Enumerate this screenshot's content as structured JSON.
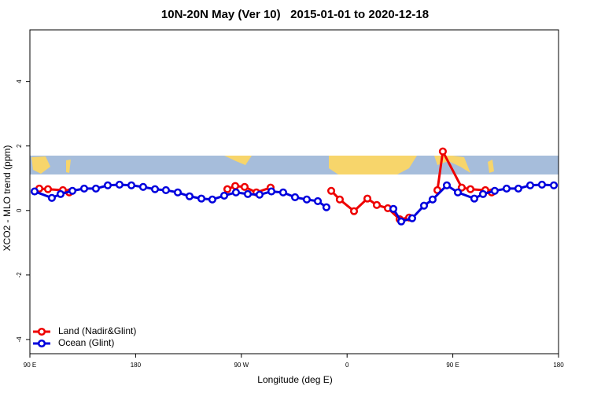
{
  "chart_data": {
    "type": "line",
    "title": "10N-20N May (Ver 10)   2015-01-01 to 2020-12-18",
    "x_label": "Longitude (deg E)",
    "y_label": "XCO2 - MLO trend (ppm)",
    "xlim": [
      90,
      540
    ],
    "xticks": [
      {
        "value": 90,
        "label": "90 E"
      },
      {
        "value": 180,
        "label": "180"
      },
      {
        "value": 270,
        "label": "90 W"
      },
      {
        "value": 360,
        "label": "0"
      },
      {
        "value": 450,
        "label": "90 E"
      },
      {
        "value": 540,
        "label": "180"
      }
    ],
    "ylim": [
      -4.44,
      5.6
    ],
    "yticks": [
      -4,
      -2,
      0,
      2,
      4
    ],
    "legend": "bottomleft",
    "series": [
      {
        "name": "Land (Nadir&Glint)",
        "color": "#ee0000",
        "x": [
          98.0,
          105.4,
          118.1,
          123.5,
          200,
          258.1,
          264.8,
          272.8,
          282.8,
          294.9,
          320,
          346.5,
          353.8,
          365.9,
          377.3,
          385.3,
          394.7,
          404.7,
          412.8,
          420,
          436.9,
          441.5,
          457.6,
          465.0,
          477.7,
          483.1
        ],
        "values": [
          0.68,
          0.66,
          0.63,
          0.56,
          null,
          0.66,
          0.76,
          0.73,
          0.56,
          0.71,
          null,
          0.61,
          0.34,
          -0.02,
          0.37,
          0.17,
          0.07,
          -0.27,
          -0.22,
          null,
          0.63,
          1.83,
          0.71,
          0.66,
          0.63,
          0.56
        ]
      },
      {
        "name": "Ocean (Glint)",
        "color": "#0000dd",
        "x": [
          94.0,
          108.7,
          116.1,
          126.2,
          136.2,
          146.2,
          156.3,
          166.3,
          176.4,
          186.4,
          196.5,
          205.8,
          215.9,
          225.9,
          236.0,
          245.3,
          255.4,
          265.4,
          275.5,
          285.5,
          295.6,
          305.6,
          315.7,
          325.7,
          335.1,
          342.4,
          370,
          399.4,
          406.1,
          415.4,
          425.5,
          432.8,
          444.9,
          454.3,
          468.3,
          475.7,
          485.7,
          495.8,
          505.8,
          515.9,
          525.9,
          536.0
        ],
        "values": [
          0.59,
          0.39,
          0.51,
          0.61,
          0.68,
          0.68,
          0.78,
          0.8,
          0.78,
          0.73,
          0.66,
          0.63,
          0.56,
          0.44,
          0.37,
          0.34,
          0.46,
          0.56,
          0.51,
          0.49,
          0.59,
          0.56,
          0.41,
          0.34,
          0.29,
          0.1,
          null,
          0.05,
          -0.34,
          -0.24,
          0.15,
          0.34,
          0.78,
          0.56,
          0.37,
          0.51,
          0.61,
          0.68,
          0.68,
          0.78,
          0.8,
          0.78
        ]
      }
    ]
  }
}
